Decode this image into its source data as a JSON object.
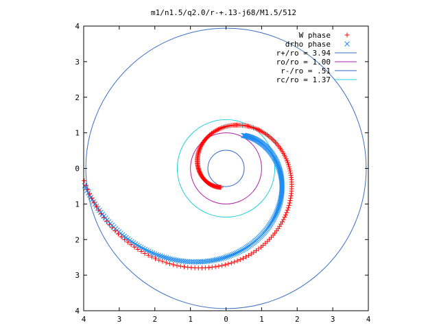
{
  "chart_data": {
    "type": "scatter",
    "title": "m1/n1.5/q2.0/r-+.13-j68/M1.5/512",
    "xlim": [
      -4,
      4
    ],
    "ylim": [
      -4,
      4
    ],
    "x_ticks": [
      -4,
      -3,
      -2,
      -1,
      0,
      1,
      2,
      3,
      4
    ],
    "y_ticks": [
      -4,
      -3,
      -2,
      -1,
      0,
      1,
      2,
      3,
      4
    ],
    "x_tick_labels": [
      "4",
      "3",
      "2",
      "1",
      "0",
      "1",
      "2",
      "3",
      "4"
    ],
    "y_tick_labels": [
      "4",
      "3",
      "2",
      "1",
      "0",
      "1",
      "2",
      "3",
      "4"
    ],
    "grid": false,
    "legend_position": "top-right",
    "circles": [
      {
        "label": "r+/ro = 3.94",
        "radius": 3.94,
        "color": "#3a6fc4"
      },
      {
        "label": "ro/ro = 1.00",
        "radius": 1.0,
        "color": "#b01ea8"
      },
      {
        "label": "r-/ro = .51",
        "radius": 0.51,
        "color": "#2a64c8"
      },
      {
        "label": "rc/ro = 1.37",
        "radius": 1.37,
        "color": "#1ed0d8"
      }
    ],
    "series": [
      {
        "name": "W phase",
        "marker": "plus",
        "color": "#ff0000",
        "spiral": {
          "r_start": 0.55,
          "r_end": 4.0,
          "angle_start_deg": 255,
          "angle_end_deg": -175,
          "points": 230
        }
      },
      {
        "name": "drho phase",
        "marker": "x",
        "color": "#1e8cf0",
        "spiral": {
          "r_start": 1.05,
          "r_end": 4.0,
          "angle_start_deg": 62,
          "angle_end_deg": -173,
          "points": 230
        }
      }
    ]
  }
}
